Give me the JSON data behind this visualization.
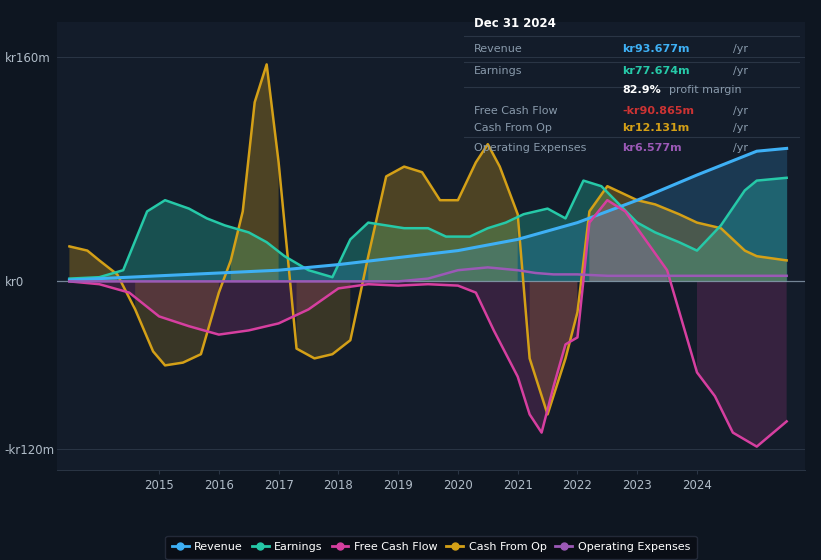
{
  "bg_color": "#0e1621",
  "plot_bg_color": "#131c2a",
  "ylim": [
    -135,
    185
  ],
  "yticks": [
    -120,
    0,
    160
  ],
  "ytick_labels": [
    "-kr120m",
    "kr0",
    "kr160m"
  ],
  "xticks": [
    2015,
    2016,
    2017,
    2018,
    2019,
    2020,
    2021,
    2022,
    2023,
    2024
  ],
  "xlim": [
    2013.3,
    2025.8
  ],
  "colors": {
    "revenue": "#3eb0f5",
    "earnings": "#26c9a8",
    "free_cash_flow": "#d63fa0",
    "cash_from_op": "#d4a017",
    "operating_expenses": "#9b59b6"
  },
  "info_box": {
    "date": "Dec 31 2024",
    "revenue_val": "kr93.677m",
    "earnings_val": "kr77.674m",
    "profit_margin": "82.9%",
    "fcf_val": "-kr90.865m",
    "cash_op_val": "kr12.131m",
    "op_exp_val": "kr6.577m"
  },
  "revenue": {
    "x": [
      2013.5,
      2014.0,
      2015.0,
      2016.0,
      2017.0,
      2018.0,
      2019.0,
      2020.0,
      2021.0,
      2022.0,
      2023.0,
      2024.0,
      2025.0,
      2025.5
    ],
    "y": [
      1,
      2,
      4,
      6,
      8,
      12,
      17,
      22,
      30,
      42,
      58,
      76,
      93,
      95
    ]
  },
  "earnings": {
    "x": [
      2013.5,
      2014.0,
      2014.4,
      2014.8,
      2015.1,
      2015.5,
      2015.8,
      2016.1,
      2016.5,
      2016.8,
      2017.1,
      2017.5,
      2017.9,
      2018.2,
      2018.5,
      2018.8,
      2019.1,
      2019.5,
      2019.8,
      2020.2,
      2020.5,
      2020.8,
      2021.1,
      2021.5,
      2021.8,
      2022.1,
      2022.4,
      2022.7,
      2023.0,
      2023.3,
      2023.7,
      2024.0,
      2024.4,
      2024.8,
      2025.0,
      2025.5
    ],
    "y": [
      2,
      3,
      8,
      50,
      58,
      52,
      45,
      40,
      35,
      28,
      18,
      8,
      3,
      30,
      42,
      40,
      38,
      38,
      32,
      32,
      38,
      42,
      48,
      52,
      45,
      72,
      68,
      55,
      42,
      35,
      28,
      22,
      40,
      65,
      72,
      74
    ]
  },
  "free_cash_flow": {
    "x": [
      2013.5,
      2014.0,
      2014.5,
      2015.0,
      2015.5,
      2016.0,
      2016.5,
      2017.0,
      2017.5,
      2018.0,
      2018.5,
      2019.0,
      2019.5,
      2020.0,
      2020.3,
      2020.6,
      2021.0,
      2021.2,
      2021.4,
      2021.6,
      2021.8,
      2022.0,
      2022.2,
      2022.5,
      2022.8,
      2023.0,
      2023.5,
      2024.0,
      2024.3,
      2024.6,
      2025.0,
      2025.5
    ],
    "y": [
      0,
      -2,
      -8,
      -25,
      -32,
      -38,
      -35,
      -30,
      -20,
      -5,
      -2,
      -3,
      -2,
      -3,
      -8,
      -35,
      -68,
      -95,
      -108,
      -75,
      -45,
      -40,
      42,
      58,
      50,
      38,
      8,
      -65,
      -82,
      -108,
      -118,
      -100
    ]
  },
  "cash_from_op": {
    "x": [
      2013.5,
      2013.8,
      2014.0,
      2014.3,
      2014.6,
      2014.9,
      2015.1,
      2015.4,
      2015.7,
      2016.0,
      2016.2,
      2016.4,
      2016.6,
      2016.8,
      2017.0,
      2017.3,
      2017.6,
      2017.9,
      2018.2,
      2018.5,
      2018.8,
      2019.1,
      2019.4,
      2019.7,
      2020.0,
      2020.3,
      2020.5,
      2020.7,
      2021.0,
      2021.2,
      2021.5,
      2021.8,
      2022.0,
      2022.2,
      2022.5,
      2022.8,
      2023.0,
      2023.3,
      2023.7,
      2024.0,
      2024.4,
      2024.8,
      2025.0,
      2025.5
    ],
    "y": [
      25,
      22,
      15,
      5,
      -20,
      -50,
      -60,
      -58,
      -52,
      -8,
      15,
      50,
      128,
      155,
      85,
      -48,
      -55,
      -52,
      -42,
      18,
      75,
      82,
      78,
      58,
      58,
      85,
      98,
      82,
      48,
      -55,
      -95,
      -55,
      -22,
      50,
      68,
      62,
      58,
      55,
      48,
      42,
      38,
      22,
      18,
      15
    ]
  },
  "operating_expenses": {
    "x": [
      2013.5,
      2014.0,
      2015.0,
      2016.0,
      2017.0,
      2018.0,
      2019.0,
      2019.5,
      2020.0,
      2020.5,
      2021.0,
      2021.3,
      2021.6,
      2022.0,
      2022.5,
      2023.0,
      2023.5,
      2024.0,
      2024.5,
      2025.0,
      2025.5
    ],
    "y": [
      0,
      0,
      0,
      0,
      0,
      0,
      0,
      2,
      8,
      10,
      8,
      6,
      5,
      5,
      4,
      4,
      4,
      4,
      4,
      4,
      4
    ]
  }
}
